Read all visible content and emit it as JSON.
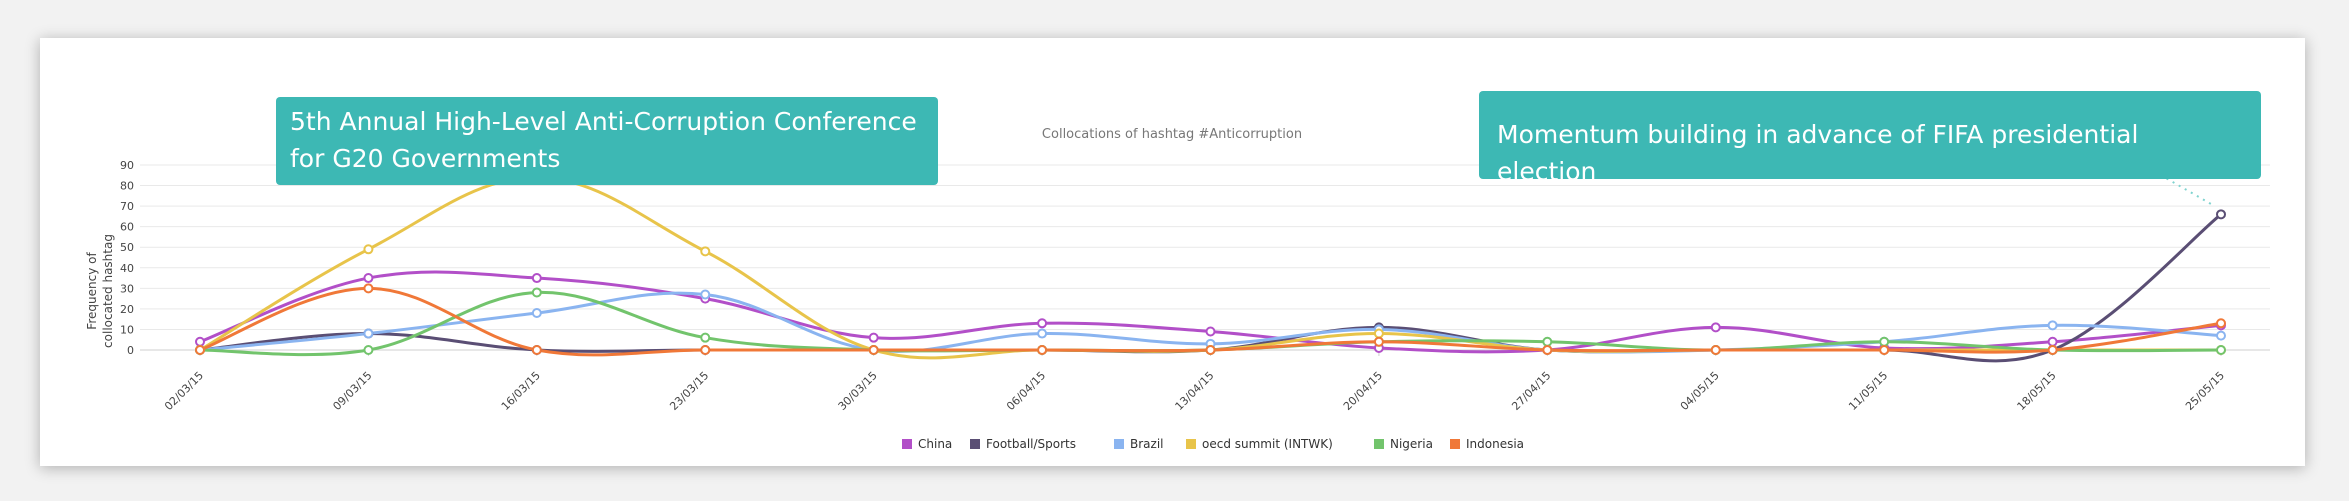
{
  "chart_data": {
    "type": "line",
    "title": "Collocations of hashtag #Anticorruption",
    "xlabel": "",
    "ylabel": "Frequency of collocated hashtag",
    "ylabel_lines": [
      "Frequency of",
      "collocated hashtag"
    ],
    "ylim": [
      0,
      90
    ],
    "yticks": [
      0,
      10,
      20,
      30,
      40,
      50,
      60,
      70,
      80,
      90
    ],
    "grid": true,
    "legend_position": "bottom",
    "categories": [
      "02/03/15",
      "09/03/15",
      "16/03/15",
      "23/03/15",
      "30/03/15",
      "06/04/15",
      "13/04/15",
      "20/04/15",
      "27/04/15",
      "04/05/15",
      "11/05/15",
      "18/05/15",
      "25/05/15"
    ],
    "series": [
      {
        "name": "China",
        "color": "#b24fc8",
        "values": [
          4,
          35,
          35,
          25,
          6,
          13,
          9,
          1,
          0,
          11,
          1,
          4,
          12
        ]
      },
      {
        "name": "Football/Sports",
        "color": "#5a4e74",
        "values": [
          0,
          8,
          0,
          0,
          0,
          0,
          0,
          11,
          0,
          0,
          0,
          0,
          66
        ]
      },
      {
        "name": "Brazil",
        "color": "#8ab4f0",
        "values": [
          0,
          8,
          18,
          27,
          0,
          8,
          3,
          10,
          0,
          0,
          4,
          12,
          7
        ]
      },
      {
        "name": "oecd summit (INTWK)",
        "color": "#e8c44a",
        "values": [
          0,
          49,
          84,
          48,
          0,
          0,
          0,
          8,
          0,
          0,
          0,
          0,
          0
        ]
      },
      {
        "name": "Nigeria",
        "color": "#72c46c",
        "values": [
          0,
          0,
          28,
          6,
          0,
          0,
          0,
          4,
          4,
          0,
          4,
          0,
          0
        ]
      },
      {
        "name": "Indonesia",
        "color": "#f07838",
        "values": [
          0,
          30,
          0,
          0,
          0,
          0,
          0,
          4,
          0,
          0,
          0,
          0,
          13
        ]
      }
    ],
    "annotations": [
      {
        "text": "5th Annual High-Level Anti-Corruption Conference for G20 Governments",
        "lines": [
          "5th Annual High-Level Anti-Corruption Conference",
          "for G20 Governments"
        ],
        "category": "16/03/15",
        "series": "oecd summit (INTWK)"
      },
      {
        "text": "Momentum building in advance of FIFA presidential election",
        "category": "25/05/15",
        "series": "Football/Sports"
      }
    ]
  },
  "style": {
    "callout_color": "#3db8b4",
    "grid_color": "#e9e9e9",
    "axis_color": "#cfcfcf",
    "text_color": "#666666"
  }
}
